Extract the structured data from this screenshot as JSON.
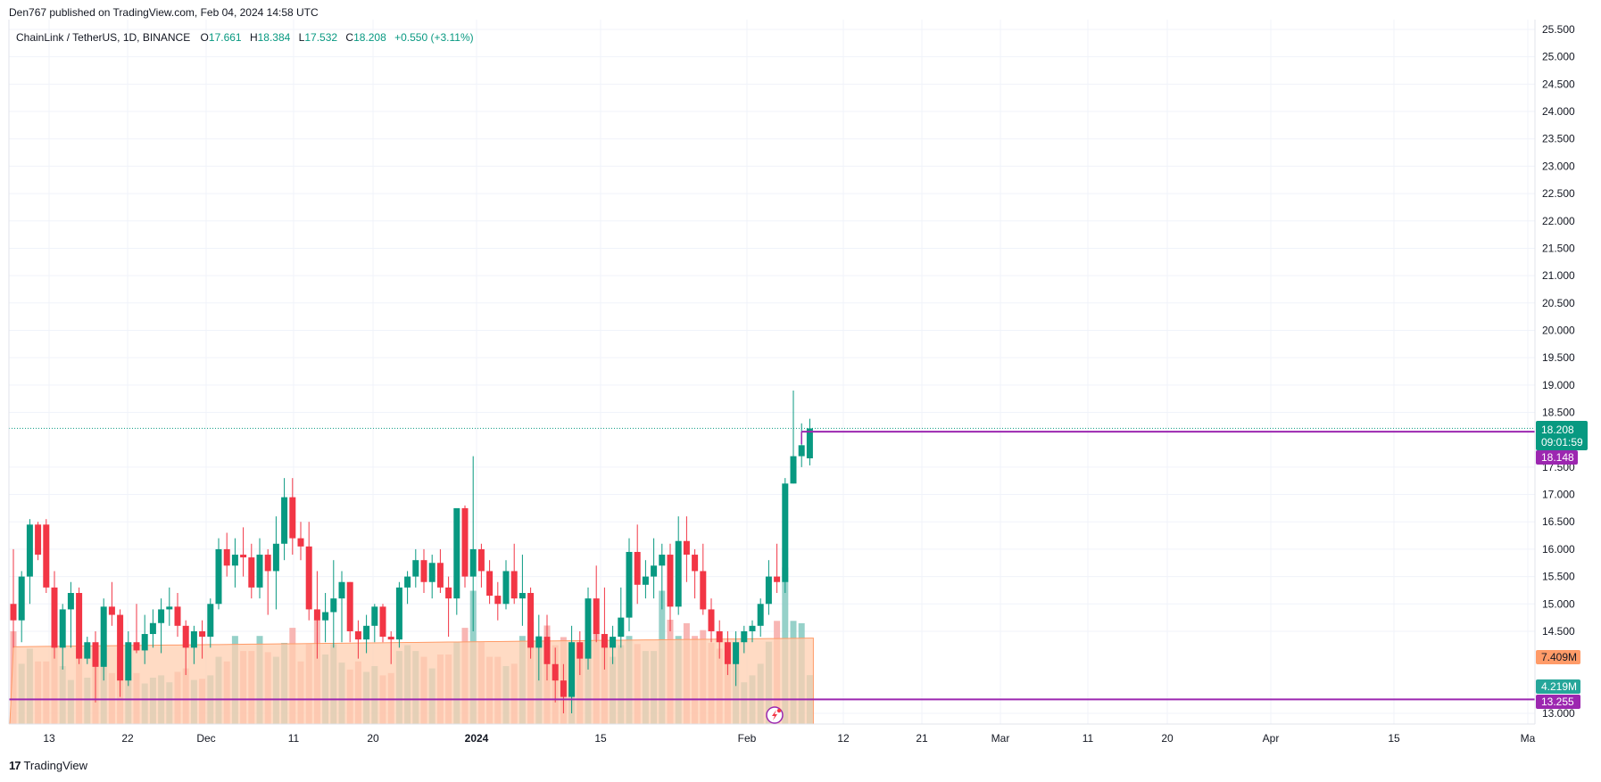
{
  "publisher": {
    "text": "Den767 published on TradingView.com, Feb 04, 2024 14:58 UTC"
  },
  "footer": {
    "brand": "TradingView",
    "logo_text": "17"
  },
  "legend": {
    "symbol": "ChainLink / TetherUS, 1D, BINANCE",
    "open_label": "O",
    "open": "17.661",
    "high_label": "H",
    "high": "18.384",
    "low_label": "L",
    "low": "17.532",
    "close_label": "C",
    "close": "18.208",
    "change": "+0.550 (+3.11%)"
  },
  "price_labels": {
    "last_price": "18.208",
    "countdown": "09:01:59",
    "line_upper": "18.148",
    "volume_ma": "7.409M",
    "volume_last": "4.219M",
    "line_lower": "13.255"
  },
  "colors": {
    "up": "#089981",
    "down": "#f23645",
    "vol_up": "#84c9bf",
    "vol_down": "#f7a9a7",
    "vol_ma_fill": "#ffcfb0",
    "vol_ma_edge": "#ff9b68",
    "purple_line": "#9c27b0",
    "last_label": "#089981",
    "vol_ma_label": "#ff9b68",
    "vol_last_label": "#26a69a"
  },
  "chart_data": {
    "type": "candlestick",
    "symbol": "ChainLink / TetherUS",
    "interval": "1D",
    "exchange": "BINANCE",
    "y_axis": {
      "ylim": [
        13.0,
        25.5
      ],
      "ticks": [
        "25.500",
        "25.000",
        "24.500",
        "24.000",
        "23.500",
        "23.000",
        "22.500",
        "22.000",
        "21.500",
        "21.000",
        "20.500",
        "20.000",
        "19.500",
        "19.000",
        "18.500",
        "17.500",
        "17.000",
        "16.500",
        "16.000",
        "15.500",
        "15.000",
        "14.500",
        "13.000"
      ]
    },
    "x_axis": {
      "ticks": [
        "13",
        "22",
        "Dec",
        "11",
        "20",
        "2024",
        "15",
        "Feb",
        "12",
        "21",
        "Mar",
        "11",
        "20",
        "Apr",
        "15",
        "Ma"
      ]
    },
    "horizontal_lines": [
      18.148,
      13.255
    ],
    "volume_ma_level": 7.409,
    "candles": [
      {
        "o": 15.0,
        "h": 16.0,
        "l": 14.2,
        "c": 14.7,
        "v": 8.0
      },
      {
        "o": 14.7,
        "h": 15.6,
        "l": 14.3,
        "c": 15.5,
        "v": 5.2
      },
      {
        "o": 15.5,
        "h": 16.55,
        "l": 15.0,
        "c": 16.45,
        "v": 6.5
      },
      {
        "o": 16.45,
        "h": 16.5,
        "l": 15.8,
        "c": 15.9,
        "v": 5.4
      },
      {
        "o": 16.45,
        "h": 16.55,
        "l": 15.2,
        "c": 15.3,
        "v": 5.4
      },
      {
        "o": 15.3,
        "h": 15.6,
        "l": 14.0,
        "c": 14.2,
        "v": 7.3
      },
      {
        "o": 14.2,
        "h": 15.0,
        "l": 13.8,
        "c": 14.9,
        "v": 5.0
      },
      {
        "o": 14.9,
        "h": 15.4,
        "l": 14.2,
        "c": 15.2,
        "v": 3.8
      },
      {
        "o": 15.2,
        "h": 15.3,
        "l": 13.9,
        "c": 14.0,
        "v": 6.6
      },
      {
        "o": 14.0,
        "h": 14.4,
        "l": 13.9,
        "c": 14.3,
        "v": 4.0
      },
      {
        "o": 14.3,
        "h": 14.5,
        "l": 13.2,
        "c": 13.85,
        "v": 5.8
      },
      {
        "o": 13.85,
        "h": 15.1,
        "l": 13.6,
        "c": 14.95,
        "v": 6.9
      },
      {
        "o": 14.95,
        "h": 15.4,
        "l": 14.6,
        "c": 14.8,
        "v": 4.4
      },
      {
        "o": 14.8,
        "h": 14.9,
        "l": 13.3,
        "c": 13.6,
        "v": 5.8
      },
      {
        "o": 13.6,
        "h": 14.5,
        "l": 13.5,
        "c": 14.3,
        "v": 5.4
      },
      {
        "o": 14.3,
        "h": 15.0,
        "l": 14.1,
        "c": 14.15,
        "v": 4.4
      },
      {
        "o": 14.15,
        "h": 14.8,
        "l": 13.9,
        "c": 14.45,
        "v": 3.5
      },
      {
        "o": 14.45,
        "h": 14.9,
        "l": 14.2,
        "c": 14.65,
        "v": 4.0
      },
      {
        "o": 14.65,
        "h": 15.1,
        "l": 14.1,
        "c": 14.9,
        "v": 4.2
      },
      {
        "o": 14.9,
        "h": 15.3,
        "l": 14.6,
        "c": 14.95,
        "v": 3.6
      },
      {
        "o": 14.95,
        "h": 15.2,
        "l": 14.4,
        "c": 14.6,
        "v": 4.5
      },
      {
        "o": 14.6,
        "h": 14.7,
        "l": 13.7,
        "c": 14.2,
        "v": 4.8
      },
      {
        "o": 14.2,
        "h": 14.6,
        "l": 13.9,
        "c": 14.5,
        "v": 3.8
      },
      {
        "o": 14.5,
        "h": 14.7,
        "l": 14.0,
        "c": 14.4,
        "v": 3.9
      },
      {
        "o": 14.4,
        "h": 15.1,
        "l": 14.2,
        "c": 15.0,
        "v": 4.2
      },
      {
        "o": 15.0,
        "h": 16.2,
        "l": 14.9,
        "c": 16.0,
        "v": 5.8
      },
      {
        "o": 16.0,
        "h": 16.3,
        "l": 15.5,
        "c": 15.7,
        "v": 5.4
      },
      {
        "o": 15.7,
        "h": 16.2,
        "l": 15.3,
        "c": 15.9,
        "v": 7.6
      },
      {
        "o": 15.9,
        "h": 16.4,
        "l": 15.5,
        "c": 15.85,
        "v": 6.3
      },
      {
        "o": 15.85,
        "h": 16.1,
        "l": 15.1,
        "c": 15.3,
        "v": 6.3
      },
      {
        "o": 15.3,
        "h": 16.2,
        "l": 15.1,
        "c": 15.9,
        "v": 7.6
      },
      {
        "o": 15.9,
        "h": 16.0,
        "l": 14.8,
        "c": 15.6,
        "v": 6.2
      },
      {
        "o": 15.6,
        "h": 16.6,
        "l": 14.9,
        "c": 16.1,
        "v": 5.8
      },
      {
        "o": 16.1,
        "h": 17.3,
        "l": 15.8,
        "c": 16.95,
        "v": 7.0
      },
      {
        "o": 16.95,
        "h": 17.3,
        "l": 15.9,
        "c": 16.2,
        "v": 8.3
      },
      {
        "o": 16.2,
        "h": 16.5,
        "l": 15.8,
        "c": 16.05,
        "v": 5.4
      },
      {
        "o": 16.05,
        "h": 16.5,
        "l": 14.7,
        "c": 14.9,
        "v": 6.9
      },
      {
        "o": 14.9,
        "h": 15.6,
        "l": 14.0,
        "c": 14.7,
        "v": 9.0
      },
      {
        "o": 14.7,
        "h": 15.2,
        "l": 14.3,
        "c": 14.85,
        "v": 6.0
      },
      {
        "o": 14.85,
        "h": 15.8,
        "l": 14.2,
        "c": 15.1,
        "v": 6.9
      },
      {
        "o": 15.1,
        "h": 15.6,
        "l": 14.3,
        "c": 15.4,
        "v": 5.3
      },
      {
        "o": 15.4,
        "h": 15.4,
        "l": 14.3,
        "c": 14.5,
        "v": 4.7
      },
      {
        "o": 14.5,
        "h": 14.7,
        "l": 14.0,
        "c": 14.35,
        "v": 5.4
      },
      {
        "o": 14.35,
        "h": 14.8,
        "l": 14.1,
        "c": 14.6,
        "v": 4.5
      },
      {
        "o": 14.6,
        "h": 15.0,
        "l": 14.3,
        "c": 14.95,
        "v": 5.0
      },
      {
        "o": 14.95,
        "h": 15.0,
        "l": 14.3,
        "c": 14.4,
        "v": 4.2
      },
      {
        "o": 14.4,
        "h": 14.5,
        "l": 13.9,
        "c": 14.35,
        "v": 4.4
      },
      {
        "o": 14.35,
        "h": 15.4,
        "l": 14.2,
        "c": 15.3,
        "v": 6.3
      },
      {
        "o": 15.3,
        "h": 15.6,
        "l": 15.0,
        "c": 15.5,
        "v": 6.8
      },
      {
        "o": 15.5,
        "h": 16.0,
        "l": 15.3,
        "c": 15.8,
        "v": 6.3
      },
      {
        "o": 15.8,
        "h": 16.0,
        "l": 15.2,
        "c": 15.4,
        "v": 5.8
      },
      {
        "o": 15.4,
        "h": 15.9,
        "l": 15.1,
        "c": 15.75,
        "v": 4.8
      },
      {
        "o": 15.75,
        "h": 16.0,
        "l": 15.2,
        "c": 15.3,
        "v": 6.0
      },
      {
        "o": 15.3,
        "h": 15.5,
        "l": 14.4,
        "c": 15.1,
        "v": 6.0
      },
      {
        "o": 15.1,
        "h": 16.7,
        "l": 14.8,
        "c": 16.75,
        "v": 7.1
      },
      {
        "o": 16.75,
        "h": 16.8,
        "l": 15.3,
        "c": 15.5,
        "v": 8.3
      },
      {
        "o": 15.5,
        "h": 17.7,
        "l": 14.5,
        "c": 16.0,
        "v": 11.5
      },
      {
        "o": 16.0,
        "h": 16.1,
        "l": 15.3,
        "c": 15.6,
        "v": 7.1
      },
      {
        "o": 15.6,
        "h": 15.8,
        "l": 15.0,
        "c": 15.15,
        "v": 5.8
      },
      {
        "o": 15.15,
        "h": 15.4,
        "l": 14.7,
        "c": 15.0,
        "v": 5.8
      },
      {
        "o": 15.0,
        "h": 15.8,
        "l": 14.9,
        "c": 15.6,
        "v": 5.0
      },
      {
        "o": 15.6,
        "h": 16.1,
        "l": 15.0,
        "c": 15.1,
        "v": 5.2
      },
      {
        "o": 15.1,
        "h": 15.9,
        "l": 14.6,
        "c": 15.2,
        "v": 7.6
      },
      {
        "o": 15.2,
        "h": 15.3,
        "l": 14.0,
        "c": 14.2,
        "v": 8.8
      },
      {
        "o": 14.2,
        "h": 14.8,
        "l": 13.6,
        "c": 14.4,
        "v": 7.6
      },
      {
        "o": 14.4,
        "h": 14.8,
        "l": 13.6,
        "c": 13.9,
        "v": 8.5
      },
      {
        "o": 13.9,
        "h": 14.2,
        "l": 13.2,
        "c": 13.6,
        "v": 6.8
      },
      {
        "o": 13.6,
        "h": 13.9,
        "l": 13.0,
        "c": 13.3,
        "v": 7.5
      },
      {
        "o": 13.3,
        "h": 14.6,
        "l": 13.0,
        "c": 14.3,
        "v": 6.6
      },
      {
        "o": 14.3,
        "h": 14.5,
        "l": 13.7,
        "c": 14.0,
        "v": 6.8
      },
      {
        "o": 14.0,
        "h": 15.3,
        "l": 13.8,
        "c": 15.1,
        "v": 7.6
      },
      {
        "o": 15.1,
        "h": 15.7,
        "l": 14.3,
        "c": 14.45,
        "v": 7.9
      },
      {
        "o": 14.45,
        "h": 15.3,
        "l": 13.8,
        "c": 14.2,
        "v": 7.3
      },
      {
        "o": 14.2,
        "h": 14.6,
        "l": 13.9,
        "c": 14.4,
        "v": 5.8
      },
      {
        "o": 14.4,
        "h": 15.3,
        "l": 14.2,
        "c": 14.75,
        "v": 6.8
      },
      {
        "o": 14.75,
        "h": 16.2,
        "l": 14.5,
        "c": 15.95,
        "v": 7.6
      },
      {
        "o": 15.95,
        "h": 16.45,
        "l": 15.0,
        "c": 15.35,
        "v": 6.9
      },
      {
        "o": 15.35,
        "h": 15.8,
        "l": 15.1,
        "c": 15.5,
        "v": 6.3
      },
      {
        "o": 15.5,
        "h": 16.2,
        "l": 15.1,
        "c": 15.7,
        "v": 6.3
      },
      {
        "o": 15.7,
        "h": 16.1,
        "l": 14.9,
        "c": 15.9,
        "v": 11.5
      },
      {
        "o": 15.9,
        "h": 16.1,
        "l": 14.5,
        "c": 14.95,
        "v": 9.0
      },
      {
        "o": 14.95,
        "h": 16.6,
        "l": 14.8,
        "c": 16.15,
        "v": 7.6
      },
      {
        "o": 16.15,
        "h": 16.6,
        "l": 15.4,
        "c": 15.9,
        "v": 8.7
      },
      {
        "o": 15.9,
        "h": 16.0,
        "l": 15.1,
        "c": 15.6,
        "v": 7.6
      },
      {
        "o": 15.6,
        "h": 16.1,
        "l": 14.8,
        "c": 14.9,
        "v": 8.1
      },
      {
        "o": 14.9,
        "h": 15.1,
        "l": 14.3,
        "c": 14.5,
        "v": 7.0
      },
      {
        "o": 14.5,
        "h": 14.7,
        "l": 14.0,
        "c": 14.3,
        "v": 6.5
      },
      {
        "o": 14.3,
        "h": 14.5,
        "l": 13.7,
        "c": 13.9,
        "v": 6.5
      },
      {
        "o": 13.9,
        "h": 14.5,
        "l": 13.5,
        "c": 14.3,
        "v": 5.8
      },
      {
        "o": 14.3,
        "h": 14.6,
        "l": 14.1,
        "c": 14.5,
        "v": 3.6
      },
      {
        "o": 14.5,
        "h": 14.7,
        "l": 14.3,
        "c": 14.6,
        "v": 4.2
      },
      {
        "o": 14.6,
        "h": 15.1,
        "l": 14.4,
        "c": 15.0,
        "v": 5.2
      },
      {
        "o": 15.0,
        "h": 15.8,
        "l": 14.8,
        "c": 15.5,
        "v": 7.1
      },
      {
        "o": 15.5,
        "h": 16.1,
        "l": 15.2,
        "c": 15.4,
        "v": 8.9
      },
      {
        "o": 15.4,
        "h": 17.3,
        "l": 15.2,
        "c": 17.2,
        "v": 13.5
      },
      {
        "o": 17.2,
        "h": 18.9,
        "l": 17.2,
        "c": 17.7,
        "v": 8.9
      },
      {
        "o": 17.7,
        "h": 18.3,
        "l": 17.5,
        "c": 17.9,
        "v": 8.7
      },
      {
        "o": 17.661,
        "h": 18.384,
        "l": 17.532,
        "c": 18.208,
        "v": 4.219
      }
    ]
  }
}
